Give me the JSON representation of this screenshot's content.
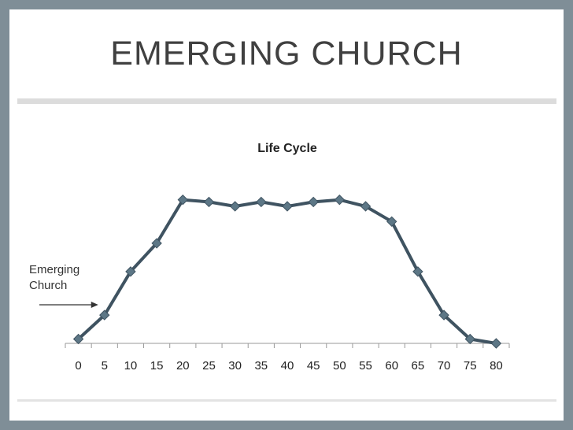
{
  "slide": {
    "title": "EMERGING CHURCH"
  },
  "chart_data": {
    "type": "line",
    "title": "Life Cycle",
    "xlabel": "",
    "ylabel": "",
    "categories": [
      "0",
      "5",
      "10",
      "15",
      "20",
      "25",
      "30",
      "35",
      "40",
      "45",
      "50",
      "55",
      "60",
      "65",
      "70",
      "75",
      "80"
    ],
    "series": [
      {
        "values": [
          2,
          13,
          33,
          46,
          66,
          65,
          63,
          65,
          63,
          65,
          66,
          63,
          56,
          33,
          13,
          2,
          0
        ]
      }
    ],
    "ylim": [
      0,
      80
    ],
    "grid": false,
    "legend": "none",
    "annotation": {
      "line1": "Emerging",
      "line2": "Church",
      "points_to": "5"
    },
    "colors": {
      "line": "#3f5361",
      "marker": "#5d7786"
    }
  }
}
